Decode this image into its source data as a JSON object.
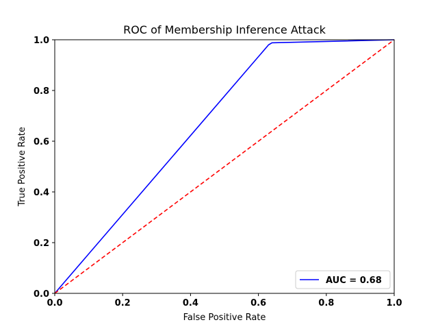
{
  "chart_data": {
    "type": "line",
    "title": "ROC of Membership Inference Attack",
    "xlabel": "False Positive Rate",
    "ylabel": "True Positive Rate",
    "xlim": [
      0.0,
      1.0
    ],
    "ylim": [
      0.0,
      1.0
    ],
    "xticks": [
      "0.0",
      "0.2",
      "0.4",
      "0.6",
      "0.8",
      "1.0"
    ],
    "yticks": [
      "0.0",
      "0.2",
      "0.4",
      "0.6",
      "0.8",
      "1.0"
    ],
    "grid": false,
    "legend_position": "bottom-right",
    "series": [
      {
        "name": "AUC = 0.68",
        "color": "#0000ff",
        "style": "solid",
        "x": [
          0.0,
          0.63,
          0.64,
          1.0
        ],
        "y": [
          0.0,
          0.98,
          0.988,
          1.0
        ]
      },
      {
        "color": "#ff0000",
        "style": "dashed",
        "x": [
          0.0,
          1.0
        ],
        "y": [
          0.0,
          1.0
        ]
      }
    ]
  }
}
